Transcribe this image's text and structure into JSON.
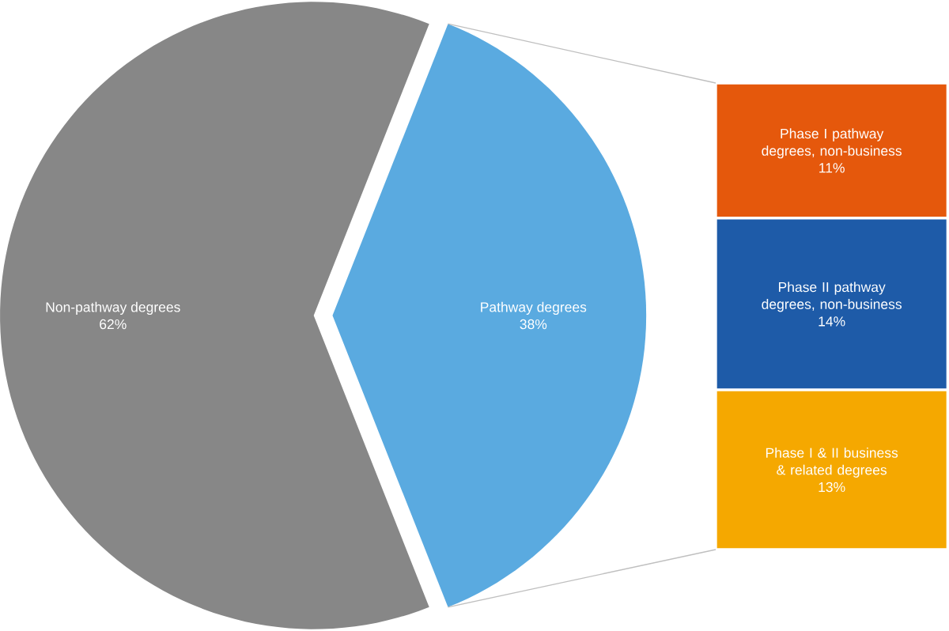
{
  "chart_data": [
    {
      "type": "pie",
      "categories": [
        "Non-pathway degrees",
        "Pathway degrees"
      ],
      "values": [
        62,
        38
      ],
      "colors": [
        "#878787",
        "#5aaae0"
      ],
      "value_labels": [
        "62%",
        "38%"
      ]
    },
    {
      "type": "bar",
      "stacked": true,
      "categories": [
        null
      ],
      "series": [
        {
          "name": "Phase I & II business & related degrees",
          "color": "#f5a800",
          "values": [
            13
          ],
          "value_labels": [
            "13%"
          ]
        },
        {
          "name": "Phase II pathway degrees, non-business",
          "color": "#1e5ba8",
          "values": [
            14
          ],
          "value_labels": [
            "14%"
          ]
        },
        {
          "name": "Phase I pathway degrees, non-business",
          "color": "#e5580c",
          "values": [
            11
          ],
          "value_labels": [
            "11%"
          ]
        }
      ]
    }
  ]
}
